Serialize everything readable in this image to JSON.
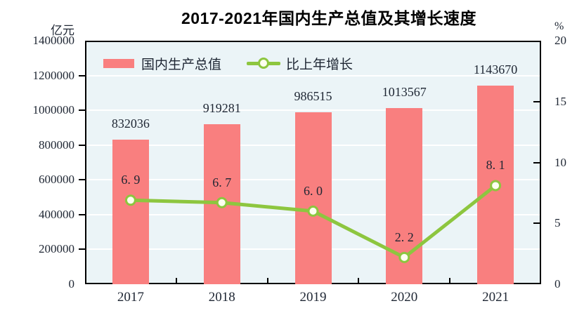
{
  "title": "2017-2021年国内生产总值及其增长速度",
  "colors": {
    "bar": "#f97f7f",
    "line": "#8dc63f",
    "marker_fill": "#fdfff0",
    "plot_bg": "#ebf4f7",
    "grid": "#ffffff",
    "axis": "#000000",
    "text": "#1e2633"
  },
  "chart_data": {
    "type": "bar",
    "title": "2017-2021年国内生产总值及其增长速度",
    "categories": [
      "2017",
      "2018",
      "2019",
      "2020",
      "2021"
    ],
    "series": [
      {
        "name": "国内生产总值",
        "chart_type": "bar",
        "axis": "left",
        "unit": "亿元",
        "values": [
          832036,
          919281,
          986515,
          1013567,
          1143670
        ],
        "labels": [
          "832036",
          "919281",
          "986515",
          "1013567",
          "1143670"
        ]
      },
      {
        "name": "比上年增长",
        "chart_type": "line",
        "axis": "right",
        "unit": "%",
        "values": [
          6.9,
          6.7,
          6.0,
          2.2,
          8.1
        ],
        "labels": [
          "6. 9",
          "6. 7",
          "6. 0",
          "2. 2",
          "8. 1"
        ]
      }
    ],
    "left_axis": {
      "unit": "亿元",
      "min": 0,
      "max": 1400000,
      "step": 200000,
      "tick_labels": [
        "1400000",
        "1200000",
        "1000000",
        "800000",
        "600000",
        "400000",
        "200000",
        "0"
      ]
    },
    "right_axis": {
      "unit": "%",
      "min": 0,
      "max": 20,
      "step": 5,
      "tick_labels": [
        "20",
        "15",
        "10",
        "5",
        "0"
      ]
    },
    "grid": true,
    "legend_position": "top-left-inside"
  }
}
